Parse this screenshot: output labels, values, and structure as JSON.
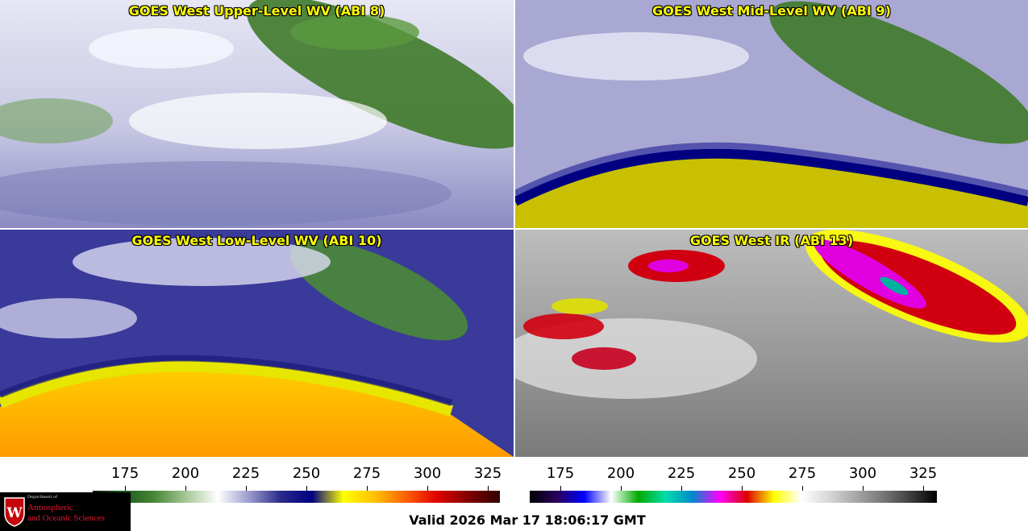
{
  "panels": [
    {
      "title": "GOES West Upper-Level WV (ABI 8)",
      "scheme": "upper"
    },
    {
      "title": "GOES West Mid-Level WV (ABI 9)",
      "scheme": "mid"
    },
    {
      "title": "GOES West Low-Level WV (ABI 10)",
      "scheme": "low"
    },
    {
      "title": "GOES West IR (ABI 13)",
      "scheme": "ir"
    }
  ],
  "colorbars": [
    {
      "name": "water-vapor-colorbar",
      "ticks": [
        "175",
        "200",
        "225",
        "250",
        "275",
        "300",
        "325"
      ],
      "colors": [
        "#0a1a0a",
        "#1e5a1e",
        "#4a8a3a",
        "#a8c89a",
        "#ffffff",
        "#9a9acc",
        "#2a2a8a",
        "#000080",
        "#ffff00",
        "#ffc000",
        "#ff6000",
        "#e00000",
        "#800000",
        "#300000"
      ]
    },
    {
      "name": "infrared-colorbar",
      "ticks": [
        "175",
        "200",
        "225",
        "250",
        "275",
        "300",
        "325"
      ],
      "colors": [
        "#000000",
        "#2a005a",
        "#0000ff",
        "#ffffff",
        "#00aa00",
        "#00ddaa",
        "#0088cc",
        "#ff00ff",
        "#dd0000",
        "#ffff00",
        "#ffffff",
        "#d8d8d8",
        "#a8a8a8",
        "#787878",
        "#404040",
        "#000000"
      ]
    }
  ],
  "valid_time": "Valid 2026 Mar 17 18:06:17 GMT",
  "logo": {
    "dept": "Department of",
    "line1": "Atmospheric",
    "line2": "and Oceanic Sciences",
    "crest_letter": "W"
  }
}
